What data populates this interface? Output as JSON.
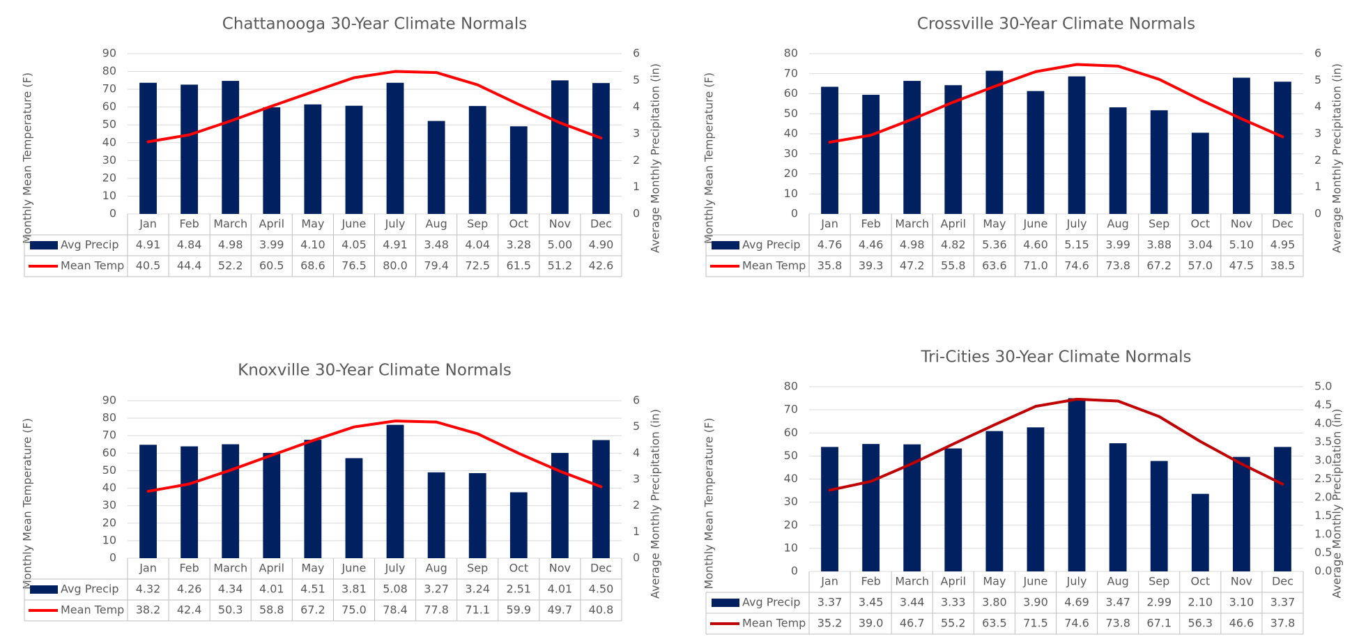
{
  "chart_data": [
    {
      "type": "combo",
      "title": "Chattanooga 30-Year Climate Normals",
      "categories": [
        "Jan",
        "Feb",
        "March",
        "April",
        "May",
        "June",
        "July",
        "Aug",
        "Sep",
        "Oct",
        "Nov",
        "Dec"
      ],
      "y_label": "Monthly Mean Temperature (F)",
      "y2_label": "Average Monthly Precipitation (in)",
      "ylim": [
        0,
        90
      ],
      "yticks": [
        0,
        10,
        20,
        30,
        40,
        50,
        60,
        70,
        80,
        90
      ],
      "y2lim": [
        0,
        6
      ],
      "y2ticks": [
        0,
        1,
        2,
        3,
        4,
        5,
        6
      ],
      "grid": true,
      "series": [
        {
          "name": "Avg Precip",
          "type": "bar",
          "axis": "y2",
          "color": "#002060",
          "values": [
            4.91,
            4.84,
            4.98,
            3.99,
            4.1,
            4.05,
            4.91,
            3.48,
            4.04,
            3.28,
            5.0,
            4.9
          ],
          "value_labels": [
            "4.91",
            "4.84",
            "4.98",
            "3.99",
            "4.10",
            "4.05",
            "4.91",
            "3.48",
            "4.04",
            "3.28",
            "5.00",
            "4.90"
          ]
        },
        {
          "name": "Mean Temp",
          "type": "line",
          "axis": "y",
          "color": "#ff0000",
          "values": [
            40.5,
            44.4,
            52.2,
            60.5,
            68.6,
            76.5,
            80.0,
            79.4,
            72.5,
            61.5,
            51.2,
            42.6
          ],
          "value_labels": [
            "40.5",
            "44.4",
            "52.2",
            "60.5",
            "68.6",
            "76.5",
            "80.0",
            "79.4",
            "72.5",
            "61.5",
            "51.2",
            "42.6"
          ]
        }
      ]
    },
    {
      "type": "combo",
      "title": "Crossville 30-Year Climate Normals",
      "categories": [
        "Jan",
        "Feb",
        "March",
        "April",
        "May",
        "June",
        "July",
        "Aug",
        "Sep",
        "Oct",
        "Nov",
        "Dec"
      ],
      "y_label": "Monthly Mean Temperature (F)",
      "y2_label": "Average Monthly Precipitation (in)",
      "ylim": [
        0,
        80
      ],
      "yticks": [
        0,
        10,
        20,
        30,
        40,
        50,
        60,
        70,
        80
      ],
      "y2lim": [
        0,
        6
      ],
      "y2ticks": [
        0,
        1,
        2,
        3,
        4,
        5,
        6
      ],
      "grid": true,
      "series": [
        {
          "name": "Avg Precip",
          "type": "bar",
          "axis": "y2",
          "color": "#002060",
          "values": [
            4.76,
            4.46,
            4.98,
            4.82,
            5.36,
            4.6,
            5.15,
            3.99,
            3.88,
            3.04,
            5.1,
            4.95
          ],
          "value_labels": [
            "4.76",
            "4.46",
            "4.98",
            "4.82",
            "5.36",
            "4.60",
            "5.15",
            "3.99",
            "3.88",
            "3.04",
            "5.10",
            "4.95"
          ]
        },
        {
          "name": "Mean Temp",
          "type": "line",
          "axis": "y",
          "color": "#ff0000",
          "values": [
            35.8,
            39.3,
            47.2,
            55.8,
            63.6,
            71.0,
            74.6,
            73.8,
            67.2,
            57.0,
            47.5,
            38.5
          ],
          "value_labels": [
            "35.8",
            "39.3",
            "47.2",
            "55.8",
            "63.6",
            "71.0",
            "74.6",
            "73.8",
            "67.2",
            "57.0",
            "47.5",
            "38.5"
          ]
        }
      ]
    },
    {
      "type": "combo",
      "title": "Knoxville 30-Year Climate Normals",
      "categories": [
        "Jan",
        "Feb",
        "March",
        "April",
        "May",
        "June",
        "July",
        "Aug",
        "Sep",
        "Oct",
        "Nov",
        "Dec"
      ],
      "y_label": "Monthly Mean Temperature (F)",
      "y2_label": "Average Monthly Precipitation (in)",
      "ylim": [
        0,
        90
      ],
      "yticks": [
        0,
        10,
        20,
        30,
        40,
        50,
        60,
        70,
        80,
        90
      ],
      "y2lim": [
        0,
        6
      ],
      "y2ticks": [
        0,
        1,
        2,
        3,
        4,
        5,
        6
      ],
      "grid": true,
      "series": [
        {
          "name": "Avg Precip",
          "type": "bar",
          "axis": "y2",
          "color": "#002060",
          "values": [
            4.32,
            4.26,
            4.34,
            4.01,
            4.51,
            3.81,
            5.08,
            3.27,
            3.24,
            2.51,
            4.01,
            4.5
          ],
          "value_labels": [
            "4.32",
            "4.26",
            "4.34",
            "4.01",
            "4.51",
            "3.81",
            "5.08",
            "3.27",
            "3.24",
            "2.51",
            "4.01",
            "4.50"
          ]
        },
        {
          "name": "Mean Temp",
          "type": "line",
          "axis": "y",
          "color": "#ff0000",
          "values": [
            38.2,
            42.4,
            50.3,
            58.8,
            67.2,
            75.0,
            78.4,
            77.8,
            71.1,
            59.9,
            49.7,
            40.8
          ],
          "value_labels": [
            "38.2",
            "42.4",
            "50.3",
            "58.8",
            "67.2",
            "75.0",
            "78.4",
            "77.8",
            "71.1",
            "59.9",
            "49.7",
            "40.8"
          ]
        }
      ]
    },
    {
      "type": "combo",
      "title": "Tri-Cities 30-Year Climate Normals",
      "categories": [
        "Jan",
        "Feb",
        "March",
        "April",
        "May",
        "June",
        "July",
        "Aug",
        "Sep",
        "Oct",
        "Nov",
        "Dec"
      ],
      "y_label": "Monthly Mean Temperature (F)",
      "y2_label": "Average Monthly Precipitation (in)",
      "ylim": [
        0,
        80
      ],
      "yticks": [
        0,
        10,
        20,
        30,
        40,
        50,
        60,
        70,
        80
      ],
      "y2lim": [
        0,
        5
      ],
      "y2ticks": [
        {
          "value": 0,
          "label": "0.0"
        },
        0.5,
        {
          "value": 1,
          "label": "1.0"
        },
        1.5,
        {
          "value": 2,
          "label": "2.0"
        },
        2.5,
        {
          "value": 3,
          "label": "3.0"
        },
        3.5,
        {
          "value": 4,
          "label": "4.0"
        },
        4.5,
        {
          "value": 5,
          "label": "5.0"
        }
      ],
      "grid": true,
      "series": [
        {
          "name": "Avg Precip",
          "type": "bar",
          "axis": "y2",
          "color": "#002060",
          "values": [
            3.37,
            3.45,
            3.44,
            3.33,
            3.8,
            3.9,
            4.69,
            3.47,
            2.99,
            2.1,
            3.1,
            3.37
          ],
          "value_labels": [
            "3.37",
            "3.45",
            "3.44",
            "3.33",
            "3.80",
            "3.90",
            "4.69",
            "3.47",
            "2.99",
            "2.10",
            "3.10",
            "3.37"
          ]
        },
        {
          "name": "Mean Temp",
          "type": "line",
          "axis": "y",
          "color": "#c00000",
          "values": [
            35.2,
            39.0,
            46.7,
            55.2,
            63.5,
            71.5,
            74.6,
            73.8,
            67.1,
            56.3,
            46.6,
            37.8
          ],
          "value_labels": [
            "35.2",
            "39.0",
            "46.7",
            "55.2",
            "63.5",
            "71.5",
            "74.6",
            "73.8",
            "67.1",
            "56.3",
            "46.6",
            "37.8"
          ]
        }
      ]
    }
  ]
}
